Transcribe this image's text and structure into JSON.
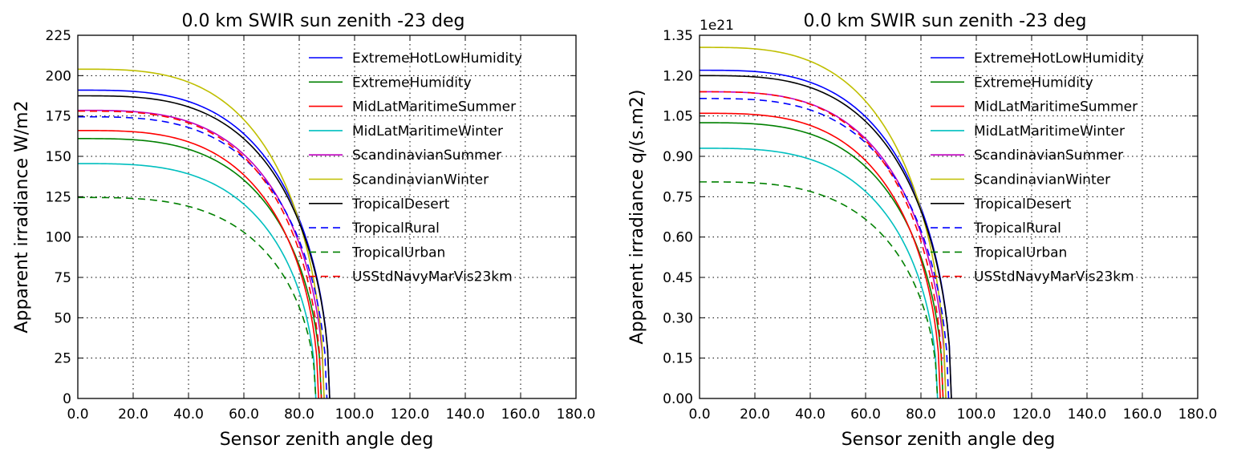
{
  "chart_data": [
    {
      "type": "line",
      "title": "0.0 km SWIR sun zenith -23 deg",
      "xlabel": "Sensor zenith angle deg",
      "ylabel": "Apparent irradiance W/m2",
      "xlim": [
        0,
        180
      ],
      "ylim": [
        0,
        225
      ],
      "xticks": [
        0,
        20,
        40,
        60,
        80,
        100,
        120,
        140,
        160,
        180
      ],
      "xtick_labels": [
        "0.0",
        "20.0",
        "40.0",
        "60.0",
        "80.0",
        "100.0",
        "120.0",
        "140.0",
        "160.0",
        "180.0"
      ],
      "yticks": [
        0,
        25,
        50,
        75,
        100,
        125,
        150,
        175,
        200,
        225
      ],
      "ytick_labels": [
        "0",
        "25",
        "50",
        "75",
        "100",
        "125",
        "150",
        "175",
        "200",
        "225"
      ],
      "offset_label": "",
      "grid": true,
      "legend_position": "top-right",
      "series": [
        {
          "name": "ExtremeHotLowHumidity",
          "color": "#0000ff",
          "dash": "solid",
          "y0": 191,
          "x_end": 91
        },
        {
          "name": "ExtremeHumidity",
          "color": "#008000",
          "dash": "solid",
          "y0": 161,
          "x_end": 88
        },
        {
          "name": "MidLatMaritimeSummer",
          "color": "#ff0000",
          "dash": "solid",
          "y0": 166,
          "x_end": 87
        },
        {
          "name": "MidLatMaritimeWinter",
          "color": "#00bfbf",
          "dash": "solid",
          "y0": 145.5,
          "x_end": 86
        },
        {
          "name": "ScandinavianSummer",
          "color": "#bf00bf",
          "dash": "solid",
          "y0": 178.5,
          "x_end": 89
        },
        {
          "name": "ScandinavianWinter",
          "color": "#bfbf00",
          "dash": "solid",
          "y0": 204,
          "x_end": 89
        },
        {
          "name": "TropicalDesert",
          "color": "#000000",
          "dash": "solid",
          "y0": 187.5,
          "x_end": 91
        },
        {
          "name": "TropicalRural",
          "color": "#0000ff",
          "dash": "dashed",
          "y0": 174.5,
          "x_end": 90
        },
        {
          "name": "TropicalUrban",
          "color": "#008000",
          "dash": "dashed",
          "y0": 124.5,
          "x_end": 86
        },
        {
          "name": "USStdNavyMarVis23km",
          "color": "#ff0000",
          "dash": "dashed",
          "y0": 178,
          "x_end": 88
        }
      ]
    },
    {
      "type": "line",
      "title": "0.0 km SWIR sun zenith -23 deg",
      "xlabel": "Sensor zenith angle deg",
      "ylabel": "Apparent irradiance q/(s.m2)",
      "xlim": [
        0,
        180
      ],
      "ylim": [
        0,
        1.35
      ],
      "xticks": [
        0,
        20,
        40,
        60,
        80,
        100,
        120,
        140,
        160,
        180
      ],
      "xtick_labels": [
        "0.0",
        "20.0",
        "40.0",
        "60.0",
        "80.0",
        "100.0",
        "120.0",
        "140.0",
        "160.0",
        "180.0"
      ],
      "yticks": [
        0,
        0.15,
        0.3,
        0.45,
        0.6,
        0.75,
        0.9,
        1.05,
        1.2,
        1.35
      ],
      "ytick_labels": [
        "0.00",
        "0.15",
        "0.30",
        "0.45",
        "0.60",
        "0.75",
        "0.90",
        "1.05",
        "1.20",
        "1.35"
      ],
      "offset_label": "1e21",
      "grid": true,
      "legend_position": "top-right",
      "series": [
        {
          "name": "ExtremeHotLowHumidity",
          "color": "#0000ff",
          "dash": "solid",
          "y0": 1.22,
          "x_end": 91
        },
        {
          "name": "ExtremeHumidity",
          "color": "#008000",
          "dash": "solid",
          "y0": 1.025,
          "x_end": 88
        },
        {
          "name": "MidLatMaritimeSummer",
          "color": "#ff0000",
          "dash": "solid",
          "y0": 1.06,
          "x_end": 87
        },
        {
          "name": "MidLatMaritimeWinter",
          "color": "#00bfbf",
          "dash": "solid",
          "y0": 0.93,
          "x_end": 86
        },
        {
          "name": "ScandinavianSummer",
          "color": "#bf00bf",
          "dash": "solid",
          "y0": 1.14,
          "x_end": 89
        },
        {
          "name": "ScandinavianWinter",
          "color": "#bfbf00",
          "dash": "solid",
          "y0": 1.305,
          "x_end": 89
        },
        {
          "name": "TropicalDesert",
          "color": "#000000",
          "dash": "solid",
          "y0": 1.2,
          "x_end": 91
        },
        {
          "name": "TropicalRural",
          "color": "#0000ff",
          "dash": "dashed",
          "y0": 1.115,
          "x_end": 90
        },
        {
          "name": "TropicalUrban",
          "color": "#008000",
          "dash": "dashed",
          "y0": 0.805,
          "x_end": 86
        },
        {
          "name": "USStdNavyMarVis23km",
          "color": "#ff0000",
          "dash": "dashed",
          "y0": 1.14,
          "x_end": 88
        }
      ]
    }
  ]
}
